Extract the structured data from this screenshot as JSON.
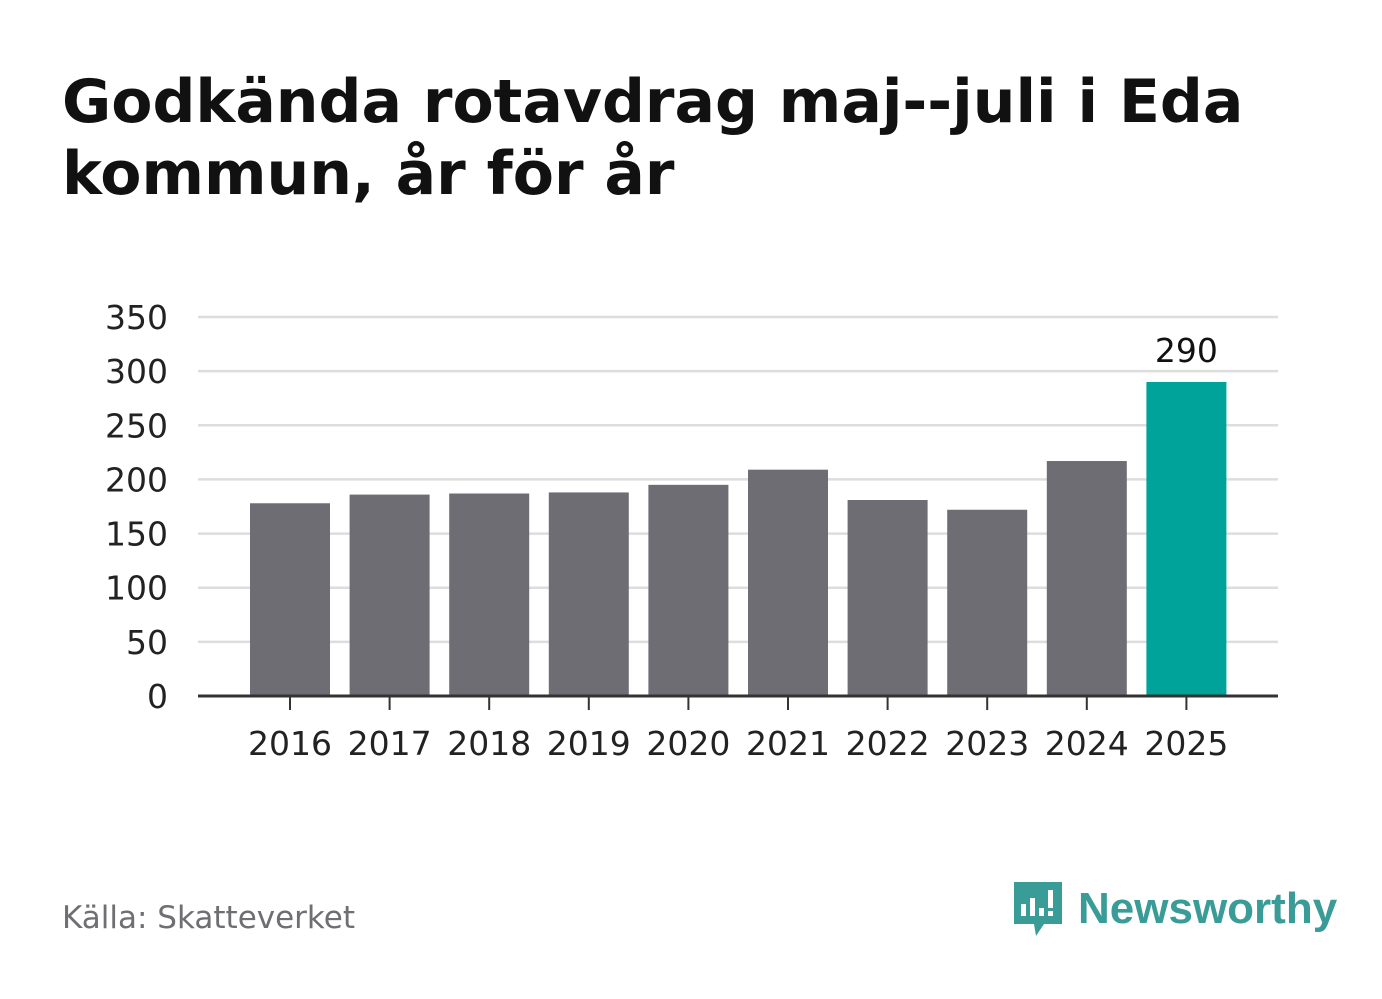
{
  "title": "Godkända rotavdrag maj--juli i Eda kommun, år för år",
  "source": "Källa: Skatteverket",
  "brand": {
    "name": "Newsworthy",
    "icon": "newsworthy-logo-icon",
    "color": "#3a9c97"
  },
  "colors": {
    "bar": "#6e6d74",
    "highlight": "#00a39a",
    "grid": "#dddddd",
    "axis": "#333333",
    "text": "#222222"
  },
  "chart_data": {
    "type": "bar",
    "title": "Godkända rotavdrag maj--juli i Eda kommun, år för år",
    "xlabel": "",
    "ylabel": "",
    "categories": [
      "2016",
      "2017",
      "2018",
      "2019",
      "2020",
      "2021",
      "2022",
      "2023",
      "2024",
      "2025"
    ],
    "values": [
      178,
      186,
      187,
      188,
      195,
      209,
      181,
      172,
      217,
      290
    ],
    "highlight_index": 9,
    "data_labels": [
      {
        "index": 9,
        "text": "290"
      }
    ],
    "ylim": [
      0,
      350
    ],
    "yticks": [
      "0",
      "50",
      "100",
      "150",
      "200",
      "250",
      "300",
      "350"
    ],
    "grid": true,
    "legend": "none"
  }
}
